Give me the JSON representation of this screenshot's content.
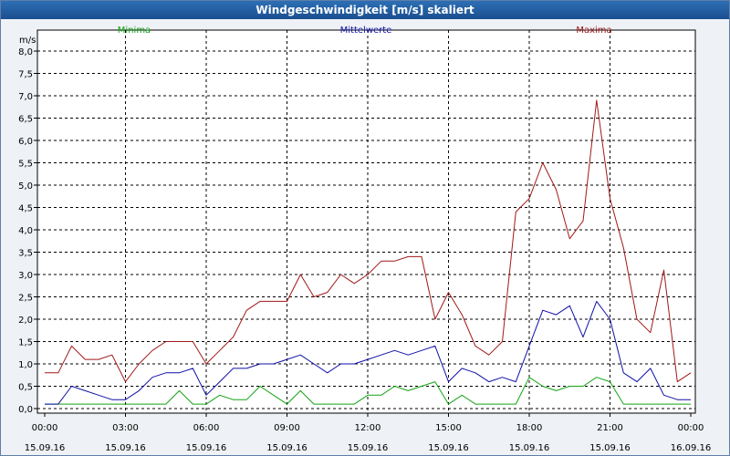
{
  "window": {
    "title": "Windgeschwindigkeit [m/s] skaliert"
  },
  "chart_data": {
    "type": "line",
    "title": "Windgeschwindigkeit [m/s] skaliert",
    "ylabel": "m/s",
    "ylim": [
      0,
      8
    ],
    "grid": true,
    "legend_placement": "top",
    "y_ticks": [
      "0,0",
      "0,5",
      "1,0",
      "1,5",
      "2,0",
      "2,5",
      "3,0",
      "3,5",
      "4,0",
      "4,5",
      "5,0",
      "5,5",
      "6,0",
      "6,5",
      "7,0",
      "7,5",
      "8,0"
    ],
    "x_ticks": [
      {
        "time": "00:00",
        "date": "15.09.16"
      },
      {
        "time": "03:00",
        "date": "15.09.16"
      },
      {
        "time": "06:00",
        "date": "15.09.16"
      },
      {
        "time": "09:00",
        "date": "15.09.16"
      },
      {
        "time": "12:00",
        "date": "15.09.16"
      },
      {
        "time": "15:00",
        "date": "15.09.16"
      },
      {
        "time": "18:00",
        "date": "15.09.16"
      },
      {
        "time": "21:00",
        "date": "15.09.16"
      },
      {
        "time": "00:00",
        "date": "16.09.16"
      }
    ],
    "x_hours": [
      0,
      0.5,
      1,
      1.5,
      2,
      2.5,
      3,
      3.5,
      4,
      4.5,
      5,
      5.5,
      6,
      6.5,
      7,
      7.5,
      8,
      8.5,
      9,
      9.5,
      10,
      10.5,
      11,
      11.5,
      12,
      12.5,
      13,
      13.5,
      14,
      14.5,
      15,
      15.5,
      16,
      16.5,
      17,
      17.5,
      18,
      18.5,
      19,
      19.5,
      20,
      20.5,
      21,
      21.5,
      22,
      22.5,
      23,
      23.5,
      24
    ],
    "series": [
      {
        "name": "Minima",
        "color": "#13a313",
        "values": [
          0.1,
          0.1,
          0.1,
          0.1,
          0.1,
          0.1,
          0.1,
          0.1,
          0.1,
          0.1,
          0.4,
          0.1,
          0.1,
          0.3,
          0.2,
          0.2,
          0.5,
          0.3,
          0.1,
          0.4,
          0.1,
          0.1,
          0.1,
          0.1,
          0.3,
          0.3,
          0.5,
          0.4,
          0.5,
          0.6,
          0.1,
          0.3,
          0.1,
          0.1,
          0.1,
          0.1,
          0.7,
          0.5,
          0.4,
          0.5,
          0.5,
          0.7,
          0.6,
          0.1,
          0.1,
          0.1,
          0.1,
          0.1,
          0.1
        ]
      },
      {
        "name": "Mittelwerte",
        "color": "#1010a8",
        "values": [
          0.1,
          0.1,
          0.5,
          0.4,
          0.3,
          0.2,
          0.2,
          0.4,
          0.7,
          0.8,
          0.8,
          0.9,
          0.3,
          0.6,
          0.9,
          0.9,
          1.0,
          1.0,
          1.1,
          1.2,
          1.0,
          0.8,
          1.0,
          1.0,
          1.1,
          1.2,
          1.3,
          1.2,
          1.3,
          1.4,
          0.6,
          0.9,
          0.8,
          0.6,
          0.7,
          0.6,
          1.4,
          2.2,
          2.1,
          2.3,
          1.6,
          2.4,
          2.0,
          0.8,
          0.6,
          0.9,
          0.3,
          0.2,
          0.2
        ]
      },
      {
        "name": "Maxima",
        "color": "#a01818",
        "values": [
          0.8,
          0.8,
          1.4,
          1.1,
          1.1,
          1.2,
          0.6,
          1.0,
          1.3,
          1.5,
          1.5,
          1.5,
          1.0,
          1.3,
          1.6,
          2.2,
          2.4,
          2.4,
          2.4,
          3.0,
          2.5,
          2.6,
          3.0,
          2.8,
          3.0,
          3.3,
          3.3,
          3.4,
          3.4,
          2.0,
          2.6,
          2.1,
          1.4,
          1.2,
          1.5,
          4.4,
          4.7,
          5.5,
          4.9,
          3.8,
          4.2,
          6.9,
          4.7,
          3.6,
          2.0,
          1.7,
          3.1,
          0.6,
          0.8
        ]
      }
    ]
  }
}
